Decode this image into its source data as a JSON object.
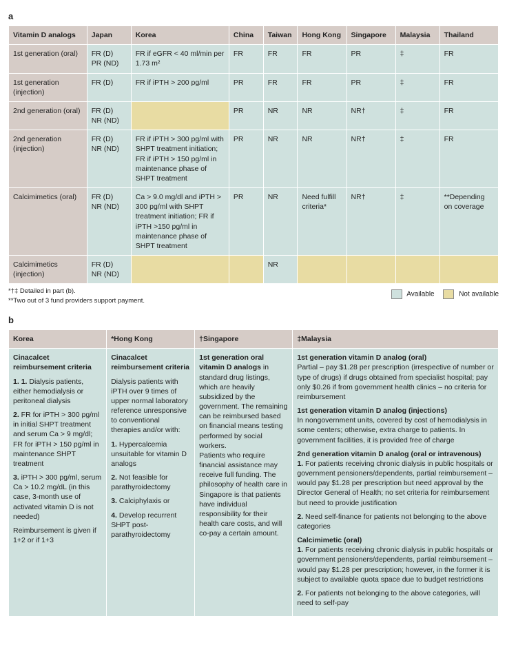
{
  "colors": {
    "header_bg": "#d6ccc7",
    "available_bg": "#cfe1de",
    "not_available_bg": "#e8dca3",
    "border": "#ffffff"
  },
  "panelA": {
    "label": "a",
    "columns": [
      "Vitamin D analogs",
      "Japan",
      "Korea",
      "China",
      "Taiwan",
      "Hong Kong",
      "Singapore",
      "Malaysia",
      "Thailand"
    ],
    "col_widths": [
      "16%",
      "9%",
      "20%",
      "7%",
      "7%",
      "10%",
      "10%",
      "9%",
      "12%"
    ],
    "rows": [
      {
        "cells": [
          {
            "text": "1st generation (oral)",
            "bg": "header"
          },
          {
            "text": "FR (D)\nPR (ND)",
            "bg": "avail"
          },
          {
            "text": "FR if eGFR < 40 ml/min per 1.73 m²",
            "bg": "avail"
          },
          {
            "text": "FR",
            "bg": "avail"
          },
          {
            "text": "FR",
            "bg": "avail"
          },
          {
            "text": "FR",
            "bg": "avail"
          },
          {
            "text": "PR",
            "bg": "avail"
          },
          {
            "text": "‡",
            "bg": "avail"
          },
          {
            "text": "FR",
            "bg": "avail"
          }
        ]
      },
      {
        "cells": [
          {
            "text": "1st generation (injection)",
            "bg": "header"
          },
          {
            "text": "FR (D)",
            "bg": "avail"
          },
          {
            "text": "FR if iPTH > 200 pg/ml",
            "bg": "avail"
          },
          {
            "text": "PR",
            "bg": "avail"
          },
          {
            "text": "FR",
            "bg": "avail"
          },
          {
            "text": "FR",
            "bg": "avail"
          },
          {
            "text": "PR",
            "bg": "avail"
          },
          {
            "text": "‡",
            "bg": "avail"
          },
          {
            "text": "FR",
            "bg": "avail"
          }
        ]
      },
      {
        "cells": [
          {
            "text": "2nd generation (oral)",
            "bg": "header"
          },
          {
            "text": "FR (D)\nNR (ND)",
            "bg": "avail"
          },
          {
            "text": "",
            "bg": "notavail"
          },
          {
            "text": "PR",
            "bg": "avail"
          },
          {
            "text": "NR",
            "bg": "avail"
          },
          {
            "text": "NR",
            "bg": "avail"
          },
          {
            "text": "NR†",
            "bg": "avail"
          },
          {
            "text": "‡",
            "bg": "avail"
          },
          {
            "text": "FR",
            "bg": "avail"
          }
        ]
      },
      {
        "cells": [
          {
            "text": "2nd generation (injection)",
            "bg": "header"
          },
          {
            "text": "FR (D)\nNR (ND)",
            "bg": "avail"
          },
          {
            "text": "FR if iPTH > 300 pg/ml with SHPT treatment initiation; FR if iPTH > 150 pg/ml in maintenance phase of SHPT treatment",
            "bg": "avail"
          },
          {
            "text": "PR",
            "bg": "avail"
          },
          {
            "text": "NR",
            "bg": "avail"
          },
          {
            "text": "NR",
            "bg": "avail"
          },
          {
            "text": "NR†",
            "bg": "avail"
          },
          {
            "text": "‡",
            "bg": "avail"
          },
          {
            "text": "FR",
            "bg": "avail"
          }
        ]
      },
      {
        "cells": [
          {
            "text": "Calcimimetics (oral)",
            "bg": "header"
          },
          {
            "text": "FR (D)\nNR (ND)",
            "bg": "avail"
          },
          {
            "text": "Ca > 9.0 mg/dl and iPTH > 300 pg/ml with SHPT treatment initiation; FR if iPTH >150 pg/ml in maintenance phase of SHPT treatment",
            "bg": "avail"
          },
          {
            "text": "PR",
            "bg": "avail"
          },
          {
            "text": "NR",
            "bg": "avail"
          },
          {
            "text": "Need fulfill criteria*",
            "bg": "avail"
          },
          {
            "text": "NR†",
            "bg": "avail"
          },
          {
            "text": "‡",
            "bg": "avail"
          },
          {
            "text": "**Depending on coverage",
            "bg": "avail"
          }
        ]
      },
      {
        "cells": [
          {
            "text": "Calcimimetics (injection)",
            "bg": "header"
          },
          {
            "text": "FR (D)\nNR (ND)",
            "bg": "avail"
          },
          {
            "text": "",
            "bg": "notavail"
          },
          {
            "text": "",
            "bg": "notavail"
          },
          {
            "text": "NR",
            "bg": "avail"
          },
          {
            "text": "",
            "bg": "notavail"
          },
          {
            "text": "",
            "bg": "notavail"
          },
          {
            "text": "",
            "bg": "notavail"
          },
          {
            "text": "",
            "bg": "notavail"
          }
        ]
      }
    ],
    "footnote1": "*†‡ Detailed in part (b).",
    "footnote2": "**Two out of 3 fund providers support payment.",
    "legend_available": "Available",
    "legend_not_available": "Not available"
  },
  "panelB": {
    "label": "b",
    "columns": [
      "Korea",
      "*Hong Kong",
      "†Singapore",
      "‡Malaysia"
    ],
    "col_widths": [
      "20%",
      "18%",
      "20%",
      "42%"
    ],
    "cells": {
      "korea": {
        "title": "Cinacalcet reimbursement criteria",
        "p1": "1. Dialysis patients, either hemodialysis or peritoneal dialysis",
        "p2": "2. FR for iPTH > 300 pg/ml in initial SHPT treatment and serum Ca > 9 mg/dl; FR for iPTH > 150 pg/ml in maintenance SHPT treatment",
        "p3": "3. iPTH > 300 pg/ml, serum Ca > 10.2 mg/dL (in this case, 3-month use of activated vitamin D is not needed)",
        "p4": "Reimbursement is given if 1+2 or if 1+3"
      },
      "hongkong": {
        "title": "Cinacalcet reimbursement criteria",
        "intro": "Dialysis patients with iPTH over 9 times of upper normal laboratory reference unresponsive to conventional therapies and/or with:",
        "p1": "1. Hypercalcemia unsuitable for vitamin D analogs",
        "p2": "2. Not feasible for parathyroidectomy",
        "p3": "3. Calciphylaxis or",
        "p4": "4. Develop recurrent SHPT post-parathyroidectomy"
      },
      "singapore": {
        "title_pre": "1st generation oral vitamin D analogs",
        "text": " in standard drug listings, which are heavily subsidized by the government. The remaining can be reimbursed based on financial means testing performed by social workers.\nPatients who require financial assistance may receive full funding. The philosophy of health care in Singapore is that patients have individual responsibility for their health care costs, and will co-pay a certain amount."
      },
      "malaysia": {
        "s1t": "1st generation vitamin D analog (oral)",
        "s1": "Partial – pay $1.28 per prescription (irrespective of number or type of drugs) if drugs obtained from specialist hospital; pay only $0.26 if from government health clinics – no criteria for reimbursement",
        "s2t": "1st generation vitamin D analog (injections)",
        "s2": "In nongovernment units, covered by cost of hemodialysis in some centers; otherwise, extra charge to patients. In government facilities, it is provided free of charge",
        "s3t": "2nd generation vitamin D analog (oral or intravenous)",
        "s3a": "1. For patients receiving chronic dialysis in public hospitals or government pensioners/dependents, partial reimbursement – would pay $1.28 per prescription but need approval by the Director General of Health; no set criteria for reimbursement but need to provide justification",
        "s3b": "2. Need self-finance for patients not belonging to the above categories",
        "s4t": "Calcimimetic (oral)",
        "s4a": "1. For patients receiving chronic dialysis in public hospitals or government pensioners/dependents, partial reimbursement – would pay $1.28 per prescription; however, in the former it is subject to available quota space due to budget restrictions",
        "s4b": "2. For patients not belonging to the above categories, will need to self-pay"
      }
    }
  }
}
